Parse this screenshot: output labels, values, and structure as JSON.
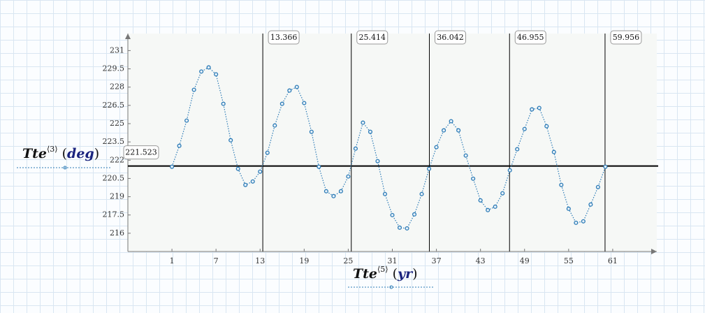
{
  "chart_data": {
    "type": "line",
    "y_label": {
      "name": "Tte",
      "index": "⟨3⟩",
      "open": "(",
      "unit": "deg",
      "close": ")"
    },
    "x_label": {
      "name": "Tte",
      "index": "⟨5⟩",
      "open": "(",
      "unit": "yr",
      "close": ")"
    },
    "x": [
      1,
      2,
      3,
      4,
      5,
      6,
      7,
      8,
      9,
      10,
      11,
      12,
      13,
      14,
      15,
      16,
      17,
      18,
      19,
      20,
      21,
      22,
      23,
      24,
      25,
      26,
      27,
      28,
      29,
      30,
      31,
      32,
      33,
      34,
      35,
      36,
      37,
      38,
      39,
      40,
      41,
      42,
      43,
      44,
      45,
      46,
      47,
      48,
      49,
      50,
      51,
      52,
      53,
      54,
      55,
      56,
      57,
      58,
      59,
      60
    ],
    "series": [
      {
        "color": "#2c7bb6",
        "values": [
          221.46,
          223.18,
          225.25,
          227.78,
          229.28,
          229.62,
          229.05,
          226.63,
          223.64,
          221.29,
          219.97,
          220.25,
          221.06,
          222.61,
          224.85,
          226.63,
          227.72,
          228.01,
          226.69,
          224.33,
          221.46,
          219.45,
          219.05,
          219.45,
          220.66,
          222.95,
          225.08,
          224.33,
          221.92,
          219.22,
          217.49,
          216.46,
          216.4,
          217.55,
          219.22,
          221.29,
          223.07,
          224.45,
          225.2,
          224.45,
          222.38,
          220.48,
          218.7,
          217.9,
          218.18,
          219.28,
          221.17,
          222.9,
          224.56,
          226.17,
          226.29,
          224.79,
          222.67,
          219.97,
          218.01,
          216.86,
          216.98,
          218.36,
          219.79,
          221.46
        ]
      }
    ],
    "xlim": [
      -5,
      67
    ],
    "ylim": [
      214.5,
      232.4
    ],
    "xticks": [
      1,
      7,
      13,
      19,
      25,
      31,
      37,
      43,
      49,
      55,
      61
    ],
    "yticks": [
      216,
      217.5,
      219,
      220.5,
      222,
      223.5,
      225,
      226.5,
      228,
      229.5,
      231
    ],
    "x_markers": [
      13.366,
      25.414,
      36.042,
      46.955,
      59.956
    ],
    "y_markers": [
      221.523
    ]
  }
}
